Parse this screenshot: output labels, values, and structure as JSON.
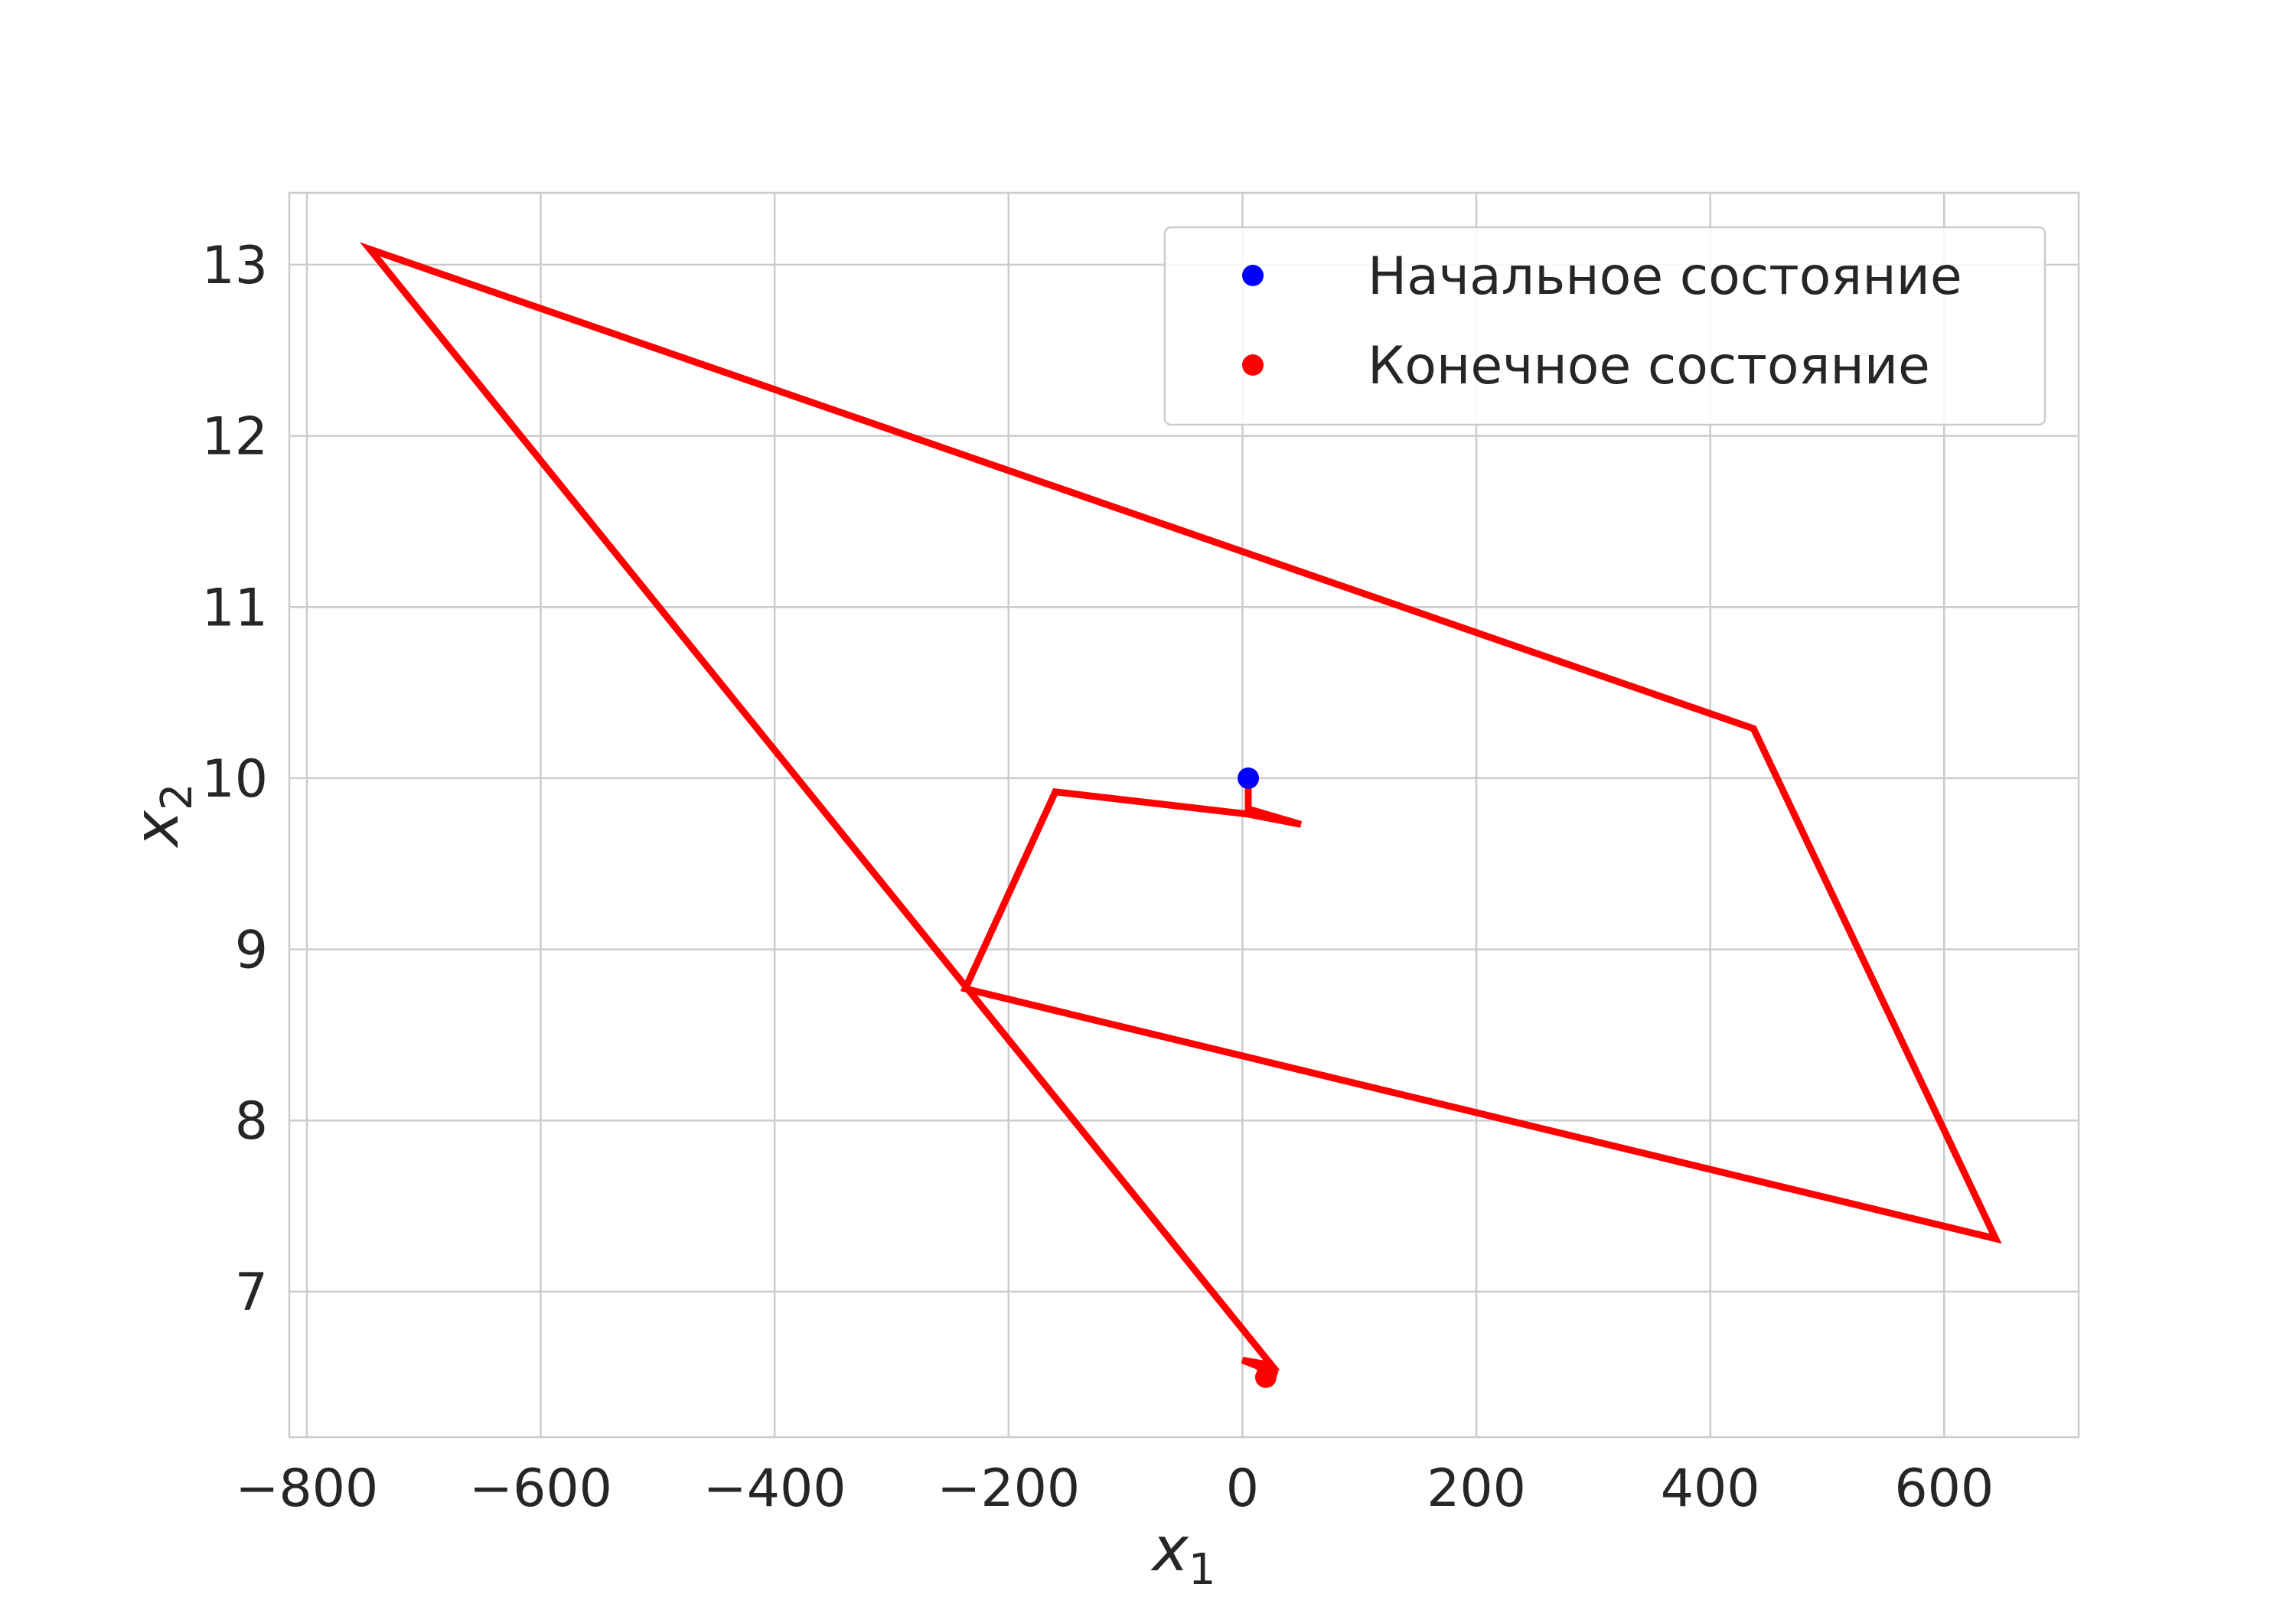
{
  "chart_data": {
    "type": "line",
    "xlabel": "x",
    "xlabel_sub": "1",
    "ylabel": "x",
    "ylabel_sub": "2",
    "xlim": [
      -815,
      715
    ],
    "ylim": [
      6.15,
      13.42
    ],
    "xticks": [
      -800,
      -600,
      -400,
      -200,
      0,
      200,
      400,
      600
    ],
    "xtick_labels": [
      "−800",
      "−600",
      "−400",
      "−200",
      "0",
      "200",
      "400",
      "600"
    ],
    "yticks": [
      7,
      8,
      9,
      10,
      11,
      12,
      13
    ],
    "ytick_labels": [
      "7",
      "8",
      "9",
      "10",
      "11",
      "12",
      "13"
    ],
    "grid": true,
    "legend_position": "top-right",
    "series": [
      {
        "color": "#ff0000",
        "points": [
          [
            5,
            10.0
          ],
          [
            5,
            9.82
          ],
          [
            50,
            9.73
          ],
          [
            5,
            9.79
          ],
          [
            -160,
            9.92
          ],
          [
            -237,
            8.77
          ],
          [
            644,
            7.31
          ],
          [
            437,
            10.29
          ],
          [
            -746,
            13.09
          ],
          [
            25,
            6.57
          ],
          [
            0,
            6.6
          ],
          [
            30,
            6.52
          ],
          [
            15,
            6.55
          ],
          [
            20,
            6.5
          ]
        ]
      }
    ],
    "start_point": {
      "label": "Начальное состояние",
      "x": 5,
      "y": 10.0,
      "color": "#0000ff"
    },
    "end_point": {
      "label": "Конечное состояние",
      "x": 20,
      "y": 6.5,
      "color": "#ff0000"
    }
  }
}
